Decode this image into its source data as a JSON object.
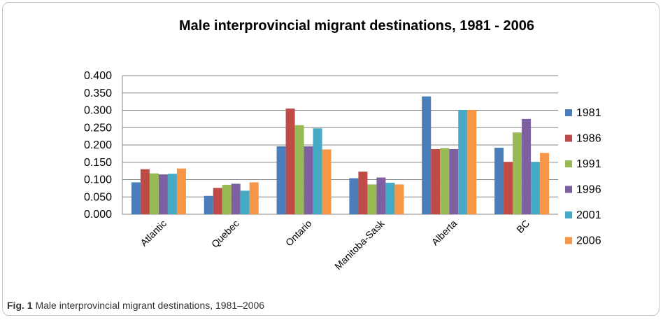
{
  "chart_data": {
    "type": "bar",
    "title": "Male interprovincial migrant destinations, 1981 - 2006",
    "categories": [
      "Atlantic",
      "Quebec",
      "Ontario",
      "Manitoba-Sask",
      "Alberta",
      "BC"
    ],
    "series": [
      {
        "name": "1981",
        "color": "#4a7ebb",
        "values": [
          0.092,
          0.053,
          0.196,
          0.104,
          0.34,
          0.192
        ]
      },
      {
        "name": "1986",
        "color": "#be4b48",
        "values": [
          0.13,
          0.076,
          0.305,
          0.123,
          0.188,
          0.151
        ]
      },
      {
        "name": "1991",
        "color": "#98b954",
        "values": [
          0.118,
          0.085,
          0.257,
          0.086,
          0.191,
          0.236
        ]
      },
      {
        "name": "1996",
        "color": "#7d60a0",
        "values": [
          0.115,
          0.088,
          0.196,
          0.106,
          0.188,
          0.275
        ]
      },
      {
        "name": "2001",
        "color": "#46aac5",
        "values": [
          0.117,
          0.068,
          0.248,
          0.091,
          0.301,
          0.151
        ]
      },
      {
        "name": "2006",
        "color": "#f79646",
        "values": [
          0.132,
          0.092,
          0.187,
          0.086,
          0.301,
          0.177
        ]
      }
    ],
    "ylim": [
      0,
      0.4
    ],
    "yticks": [
      "0.000",
      "0.050",
      "0.100",
      "0.150",
      "0.200",
      "0.250",
      "0.300",
      "0.350",
      "0.400"
    ],
    "grid": true,
    "legend_position": "right"
  },
  "caption": {
    "label": "Fig. 1",
    "text": "Male interprovincial migrant destinations, 1981–2006"
  }
}
